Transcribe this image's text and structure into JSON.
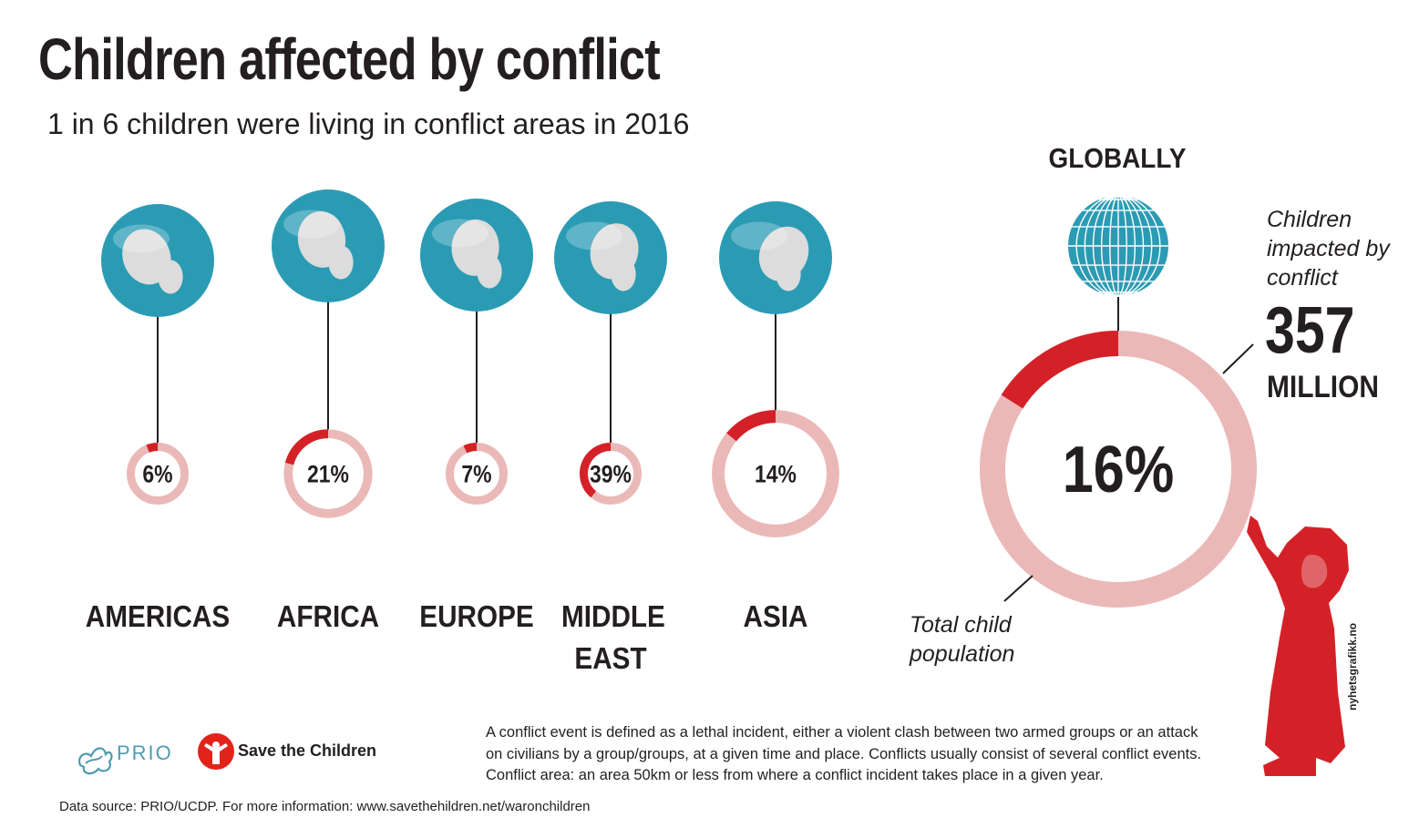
{
  "title": "Children affected by conflict",
  "subtitle": "1 in 6 children were living in conflict areas in 2016",
  "colors": {
    "conflict": "#d42127",
    "population": "#ebb8b8",
    "globe_ocean": "#2b9bb4",
    "globe_land": "#dcdcdc",
    "text": "#231f20"
  },
  "global": {
    "label": "GLOBALLY",
    "callout_impacted": "Children impacted by conflict",
    "callout_impacted_lines": [
      "Children",
      "impacted by",
      "conflict"
    ],
    "big_number": "357",
    "big_unit": "MILLION",
    "callout_total_lines": [
      "Total child",
      "population"
    ]
  },
  "definition": "A conflict event is defined as a lethal incident, either a violent clash between two armed groups or an attack on civilians by a group/groups, at a given time and place. Conflicts usually consist of several conflict events. Conflict area: an area 50km or less from where a conflict incident takes place in a given year.",
  "source": "Data source: PRIO/UCDP. For more information: www.savethehildren.net/waronchildren",
  "logos": {
    "prio": "PRIO",
    "save_the_children": "Save the Children"
  },
  "credit": "nyhetsgrafikk.no",
  "chart_data": {
    "type": "pie",
    "variant": "donut",
    "measure": "Share of children living in conflict areas, 2016",
    "categories": [
      "AMERICAS",
      "AFRICA",
      "EUROPE",
      "MIDDLE EAST",
      "ASIA",
      "GLOBALLY"
    ],
    "values": [
      6,
      21,
      7,
      39,
      14,
      16
    ],
    "value_labels": [
      "6%",
      "21%",
      "7%",
      "39%",
      "14%",
      "16%"
    ],
    "relative_population_scale": [
      0.22,
      0.32,
      0.16,
      0.13,
      0.46,
      1.0
    ],
    "unit": "%",
    "legend": [
      "Children impacted by conflict",
      "Total child population"
    ]
  }
}
